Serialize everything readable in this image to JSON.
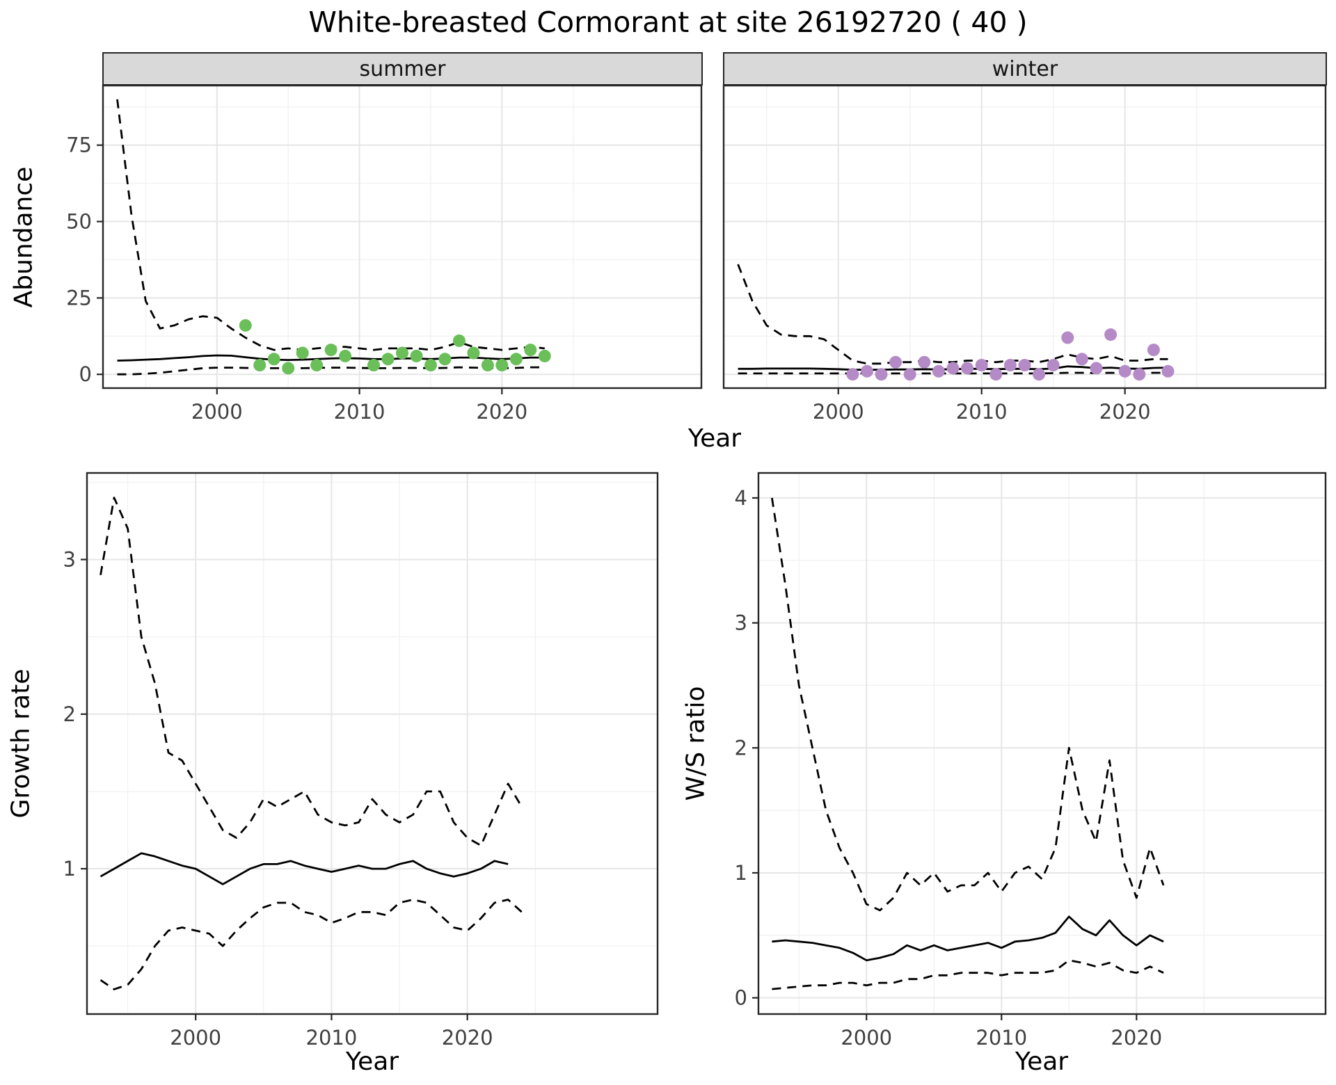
{
  "title": "White-breasted Cormorant at site 26192720 ( 40 )",
  "colors": {
    "summer_point": "#6abf59",
    "winter_point": "#b58bc7",
    "line": "#000000",
    "grid_major": "#e6e6e6",
    "grid_minor": "#f2f2f2",
    "strip_bg": "#d9d9d9",
    "panel_border": "#262626",
    "tick_label": "#404040"
  },
  "chart_data": [
    {
      "type": "line",
      "panel": "abundance-summer",
      "facet_label": "summer",
      "xlabel": "Year",
      "ylabel": "Abundance",
      "xlim": [
        1992,
        2034
      ],
      "ylim": [
        -4.5,
        94.5
      ],
      "xticks": [
        2000,
        2010,
        2020
      ],
      "yticks": [
        0,
        25,
        50,
        75
      ],
      "grid": true,
      "series": [
        {
          "name": "fit",
          "style": "solid",
          "x": [
            1993,
            1994,
            1995,
            1996,
            1997,
            1998,
            1999,
            2000,
            2001,
            2002,
            2003,
            2004,
            2005,
            2006,
            2007,
            2008,
            2009,
            2010,
            2011,
            2012,
            2013,
            2014,
            2015,
            2016,
            2017,
            2018,
            2019,
            2020,
            2021,
            2022,
            2023
          ],
          "y": [
            4.5,
            4.6,
            4.8,
            5.0,
            5.3,
            5.6,
            6.0,
            6.2,
            6.1,
            5.6,
            5.1,
            4.8,
            4.7,
            4.8,
            5.0,
            5.2,
            5.3,
            5.2,
            5.0,
            5.0,
            5.2,
            5.2,
            5.0,
            5.2,
            5.5,
            5.5,
            5.2,
            5.0,
            5.2,
            5.5,
            5.5
          ]
        },
        {
          "name": "upper-ci",
          "style": "dashed",
          "x": [
            1993,
            1994,
            1995,
            1996,
            1997,
            1998,
            1999,
            2000,
            2001,
            2002,
            2003,
            2004,
            2005,
            2006,
            2007,
            2008,
            2009,
            2010,
            2011,
            2012,
            2013,
            2014,
            2015,
            2016,
            2017,
            2018,
            2019,
            2020,
            2021,
            2022,
            2023
          ],
          "y": [
            90,
            52,
            24,
            15,
            16,
            18,
            19,
            18.5,
            15,
            12,
            9.5,
            8,
            8.5,
            8,
            8.5,
            9,
            9,
            8.5,
            8,
            8.5,
            8.5,
            8.5,
            8,
            9,
            10.5,
            9,
            8.5,
            8,
            8.5,
            9,
            8.5
          ]
        },
        {
          "name": "lower-ci",
          "style": "dashed",
          "x": [
            1993,
            1994,
            1995,
            1996,
            1997,
            1998,
            1999,
            2000,
            2001,
            2002,
            2003,
            2004,
            2005,
            2006,
            2007,
            2008,
            2009,
            2010,
            2011,
            2012,
            2013,
            2014,
            2015,
            2016,
            2017,
            2018,
            2019,
            2020,
            2021,
            2022,
            2023
          ],
          "y": [
            0,
            0,
            0.2,
            0.5,
            1.0,
            1.5,
            2.0,
            2.2,
            2.2,
            2.1,
            2.0,
            2.0,
            2.0,
            2.0,
            2.1,
            2.2,
            2.2,
            2.1,
            2.0,
            2.0,
            2.1,
            2.1,
            2.0,
            2.1,
            2.3,
            2.2,
            2.1,
            2.0,
            2.1,
            2.3,
            2.3
          ]
        }
      ],
      "points": {
        "name": "observed-summer",
        "color_key": "summer_point",
        "x": [
          2002,
          2003,
          2004,
          2005,
          2006,
          2007,
          2008,
          2009,
          2011,
          2012,
          2013,
          2014,
          2015,
          2016,
          2017,
          2018,
          2019,
          2020,
          2021,
          2022,
          2023
        ],
        "y": [
          16,
          3,
          5,
          2,
          7,
          3,
          8,
          6,
          3,
          5,
          7,
          6,
          3,
          5,
          11,
          7,
          3,
          3,
          5,
          8,
          6
        ]
      }
    },
    {
      "type": "line",
      "panel": "abundance-winter",
      "facet_label": "winter",
      "xlabel": "Year",
      "ylabel": "Abundance",
      "xlim": [
        1992,
        2034
      ],
      "ylim": [
        -4.5,
        94.5
      ],
      "xticks": [
        2000,
        2010,
        2020
      ],
      "yticks": [
        0,
        25,
        50,
        75
      ],
      "grid": true,
      "series": [
        {
          "name": "fit",
          "style": "solid",
          "x": [
            1993,
            1994,
            1995,
            1996,
            1997,
            1998,
            1999,
            2000,
            2001,
            2002,
            2003,
            2004,
            2005,
            2006,
            2007,
            2008,
            2009,
            2010,
            2011,
            2012,
            2013,
            2014,
            2015,
            2016,
            2017,
            2018,
            2019,
            2020,
            2021,
            2022,
            2023
          ],
          "y": [
            1.8,
            1.8,
            1.9,
            1.9,
            1.9,
            1.9,
            1.8,
            1.7,
            1.5,
            1.5,
            1.5,
            1.6,
            1.6,
            1.7,
            1.6,
            1.7,
            1.8,
            1.8,
            1.7,
            1.8,
            1.8,
            1.7,
            1.9,
            2.6,
            2.4,
            2.0,
            2.2,
            1.9,
            1.8,
            2.1,
            2.2
          ]
        },
        {
          "name": "upper-ci",
          "style": "dashed",
          "x": [
            1993,
            1994,
            1995,
            1996,
            1997,
            1998,
            1999,
            2000,
            2001,
            2002,
            2003,
            2004,
            2005,
            2006,
            2007,
            2008,
            2009,
            2010,
            2011,
            2012,
            2013,
            2014,
            2015,
            2016,
            2017,
            2018,
            2019,
            2020,
            2021,
            2022,
            2023
          ],
          "y": [
            36,
            24,
            16,
            13,
            12.5,
            12.5,
            11.5,
            8,
            4.5,
            3.5,
            3.5,
            4,
            4,
            4.5,
            4,
            4,
            4.5,
            4.5,
            4,
            4.5,
            4.5,
            4,
            5,
            6.5,
            5.5,
            5,
            6,
            4.5,
            4.5,
            5,
            5
          ]
        },
        {
          "name": "lower-ci",
          "style": "dashed",
          "x": [
            1993,
            1994,
            1995,
            1996,
            1997,
            1998,
            1999,
            2000,
            2001,
            2002,
            2003,
            2004,
            2005,
            2006,
            2007,
            2008,
            2009,
            2010,
            2011,
            2012,
            2013,
            2014,
            2015,
            2016,
            2017,
            2018,
            2019,
            2020,
            2021,
            2022,
            2023
          ],
          "y": [
            0.3,
            0.3,
            0.3,
            0.3,
            0.3,
            0.3,
            0.3,
            0.3,
            0.3,
            0.3,
            0.3,
            0.3,
            0.3,
            0.3,
            0.3,
            0.3,
            0.3,
            0.3,
            0.3,
            0.3,
            0.3,
            0.3,
            0.4,
            0.5,
            0.5,
            0.4,
            0.5,
            0.4,
            0.4,
            0.5,
            0.5
          ]
        }
      ],
      "points": {
        "name": "observed-winter",
        "color_key": "winter_point",
        "x": [
          2001,
          2002,
          2003,
          2004,
          2005,
          2006,
          2007,
          2008,
          2009,
          2010,
          2011,
          2012,
          2013,
          2014,
          2015,
          2016,
          2017,
          2018,
          2019,
          2020,
          2021,
          2022,
          2023
        ],
        "y": [
          0,
          1,
          0,
          4,
          0,
          4,
          1,
          2,
          2,
          3,
          0,
          3,
          3,
          0,
          3,
          12,
          5,
          2,
          13,
          1,
          0,
          8,
          1
        ]
      }
    },
    {
      "type": "line",
      "panel": "growth-rate",
      "xlabel": "Year",
      "ylabel": "Growth rate",
      "xlim": [
        1992,
        2034
      ],
      "ylim": [
        0.06,
        3.56
      ],
      "xticks": [
        2000,
        2010,
        2020
      ],
      "yticks": [
        1,
        2,
        3
      ],
      "grid": true,
      "series": [
        {
          "name": "fit",
          "style": "solid",
          "x": [
            1993,
            1994,
            1995,
            1996,
            1997,
            1998,
            1999,
            2000,
            2001,
            2002,
            2003,
            2004,
            2005,
            2006,
            2007,
            2008,
            2009,
            2010,
            2011,
            2012,
            2013,
            2014,
            2015,
            2016,
            2017,
            2018,
            2019,
            2020,
            2021,
            2022,
            2023
          ],
          "y": [
            0.95,
            1.0,
            1.05,
            1.1,
            1.08,
            1.05,
            1.02,
            1.0,
            0.95,
            0.9,
            0.95,
            1.0,
            1.03,
            1.03,
            1.05,
            1.02,
            1.0,
            0.98,
            1.0,
            1.02,
            1.0,
            1.0,
            1.03,
            1.05,
            1.0,
            0.97,
            0.95,
            0.97,
            1.0,
            1.05,
            1.03
          ]
        },
        {
          "name": "upper-ci",
          "style": "dashed",
          "x": [
            1993,
            1994,
            1995,
            1996,
            1997,
            1998,
            1999,
            2000,
            2001,
            2002,
            2003,
            2004,
            2005,
            2006,
            2007,
            2008,
            2009,
            2010,
            2011,
            2012,
            2013,
            2014,
            2015,
            2016,
            2017,
            2018,
            2019,
            2020,
            2021,
            2022,
            2023,
            2024
          ],
          "y": [
            2.9,
            3.4,
            3.2,
            2.5,
            2.2,
            1.75,
            1.7,
            1.55,
            1.4,
            1.25,
            1.2,
            1.3,
            1.45,
            1.4,
            1.45,
            1.5,
            1.35,
            1.3,
            1.28,
            1.3,
            1.45,
            1.35,
            1.3,
            1.35,
            1.5,
            1.5,
            1.3,
            1.2,
            1.15,
            1.35,
            1.55,
            1.4
          ]
        },
        {
          "name": "lower-ci",
          "style": "dashed",
          "x": [
            1993,
            1994,
            1995,
            1996,
            1997,
            1998,
            1999,
            2000,
            2001,
            2002,
            2003,
            2004,
            2005,
            2006,
            2007,
            2008,
            2009,
            2010,
            2011,
            2012,
            2013,
            2014,
            2015,
            2016,
            2017,
            2018,
            2019,
            2020,
            2021,
            2022,
            2023,
            2024
          ],
          "y": [
            0.28,
            0.22,
            0.25,
            0.35,
            0.5,
            0.6,
            0.62,
            0.6,
            0.58,
            0.5,
            0.6,
            0.68,
            0.75,
            0.78,
            0.78,
            0.72,
            0.7,
            0.65,
            0.68,
            0.72,
            0.72,
            0.7,
            0.78,
            0.8,
            0.78,
            0.7,
            0.62,
            0.6,
            0.68,
            0.78,
            0.8,
            0.72
          ]
        }
      ]
    },
    {
      "type": "line",
      "panel": "ws-ratio",
      "xlabel": "Year",
      "ylabel": "W/S ratio",
      "xlim": [
        1992,
        2034
      ],
      "ylim": [
        -0.13,
        4.2
      ],
      "xticks": [
        2000,
        2010,
        2020
      ],
      "yticks": [
        0,
        1,
        2,
        3,
        4
      ],
      "grid": true,
      "series": [
        {
          "name": "fit",
          "style": "solid",
          "x": [
            1993,
            1994,
            1995,
            1996,
            1997,
            1998,
            1999,
            2000,
            2001,
            2002,
            2003,
            2004,
            2005,
            2006,
            2007,
            2008,
            2009,
            2010,
            2011,
            2012,
            2013,
            2014,
            2015,
            2016,
            2017,
            2018,
            2019,
            2020,
            2021,
            2022
          ],
          "y": [
            0.45,
            0.46,
            0.45,
            0.44,
            0.42,
            0.4,
            0.36,
            0.3,
            0.32,
            0.35,
            0.42,
            0.38,
            0.42,
            0.38,
            0.4,
            0.42,
            0.44,
            0.4,
            0.45,
            0.46,
            0.48,
            0.52,
            0.65,
            0.55,
            0.5,
            0.62,
            0.5,
            0.42,
            0.5,
            0.45
          ]
        },
        {
          "name": "upper-ci",
          "style": "dashed",
          "x": [
            1993,
            1994,
            1995,
            1996,
            1997,
            1998,
            1999,
            2000,
            2001,
            2002,
            2003,
            2004,
            2005,
            2006,
            2007,
            2008,
            2009,
            2010,
            2011,
            2012,
            2013,
            2014,
            2015,
            2016,
            2017,
            2018,
            2019,
            2020,
            2021,
            2022
          ],
          "y": [
            4.0,
            3.3,
            2.5,
            2.0,
            1.5,
            1.2,
            1.0,
            0.75,
            0.7,
            0.8,
            1.0,
            0.9,
            1.0,
            0.85,
            0.9,
            0.9,
            1.0,
            0.85,
            1.0,
            1.05,
            0.95,
            1.2,
            2.0,
            1.5,
            1.25,
            1.9,
            1.1,
            0.8,
            1.2,
            0.9
          ]
        },
        {
          "name": "lower-ci",
          "style": "dashed",
          "x": [
            1993,
            1994,
            1995,
            1996,
            1997,
            1998,
            1999,
            2000,
            2001,
            2002,
            2003,
            2004,
            2005,
            2006,
            2007,
            2008,
            2009,
            2010,
            2011,
            2012,
            2013,
            2014,
            2015,
            2016,
            2017,
            2018,
            2019,
            2020,
            2021,
            2022
          ],
          "y": [
            0.07,
            0.08,
            0.09,
            0.1,
            0.1,
            0.12,
            0.12,
            0.1,
            0.12,
            0.12,
            0.15,
            0.15,
            0.18,
            0.18,
            0.2,
            0.2,
            0.2,
            0.18,
            0.2,
            0.2,
            0.2,
            0.22,
            0.3,
            0.28,
            0.25,
            0.28,
            0.22,
            0.2,
            0.25,
            0.2
          ]
        }
      ]
    }
  ]
}
